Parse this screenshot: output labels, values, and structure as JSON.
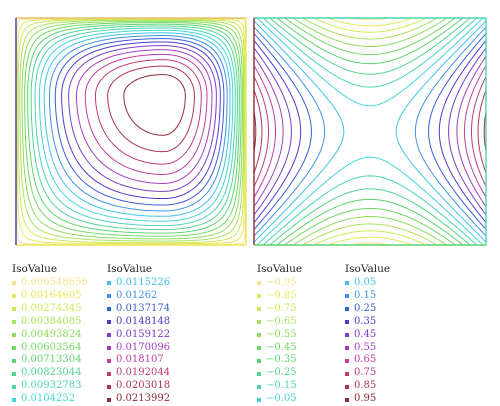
{
  "legends": [
    {
      "title": "IsoValue",
      "entries": [
        {
          "label": "0.000548656",
          "color": "#f2e48b"
        },
        {
          "label": "0.00164605",
          "color": "#e8e65a"
        },
        {
          "label": "0.00274345",
          "color": "#ccea56"
        },
        {
          "label": "0.00384085",
          "color": "#a8e25c"
        },
        {
          "label": "0.00493824",
          "color": "#8cdc5c"
        },
        {
          "label": "0.00603564",
          "color": "#6fd963"
        },
        {
          "label": "0.00713304",
          "color": "#5cd470"
        },
        {
          "label": "0.00823044",
          "color": "#52d48f"
        },
        {
          "label": "0.00932783",
          "color": "#4bd4b4"
        },
        {
          "label": "0.0104252",
          "color": "#44d6d6"
        }
      ]
    },
    {
      "title": "IsoValue",
      "entries": [
        {
          "label": "0.0115226",
          "color": "#3ec4e8"
        },
        {
          "label": "0.01262",
          "color": "#3e92e8"
        },
        {
          "label": "0.0137174",
          "color": "#3a5cd8"
        },
        {
          "label": "0.0148148",
          "color": "#4b3cd0"
        },
        {
          "label": "0.0159122",
          "color": "#7a3ccc"
        },
        {
          "label": "0.0170096",
          "color": "#a63cc2"
        },
        {
          "label": "0.018107",
          "color": "#c23ca2"
        },
        {
          "label": "0.0192044",
          "color": "#c23a78"
        },
        {
          "label": "0.0203018",
          "color": "#b03452"
        },
        {
          "label": "0.0213992",
          "color": "#8a2a36"
        }
      ]
    },
    {
      "title": "IsoValue",
      "entries": [
        {
          "label": "−0.95",
          "color": "#f2e48b"
        },
        {
          "label": "−0.85",
          "color": "#e8e65a"
        },
        {
          "label": "−0.75",
          "color": "#ccea56"
        },
        {
          "label": "−0.65",
          "color": "#a8e25c"
        },
        {
          "label": "−0.55",
          "color": "#8cdc5c"
        },
        {
          "label": "−0.45",
          "color": "#6fd963"
        },
        {
          "label": "−0.35",
          "color": "#5cd470"
        },
        {
          "label": "−0.25",
          "color": "#52d48f"
        },
        {
          "label": "−0.15",
          "color": "#4bd4b4"
        },
        {
          "label": "−0.05",
          "color": "#44d6d6"
        }
      ]
    },
    {
      "title": "IsoValue",
      "entries": [
        {
          "label": "0.05",
          "color": "#3ec4e8"
        },
        {
          "label": "0.15",
          "color": "#3e92e8"
        },
        {
          "label": "0.25",
          "color": "#3a5cd8"
        },
        {
          "label": "0.35",
          "color": "#4b3cd0"
        },
        {
          "label": "0.45",
          "color": "#7a3ccc"
        },
        {
          "label": "0.55",
          "color": "#a63cc2"
        },
        {
          "label": "0.65",
          "color": "#c23ca2"
        },
        {
          "label": "0.75",
          "color": "#c23a78"
        },
        {
          "label": "0.85",
          "color": "#b03452"
        },
        {
          "label": "0.95",
          "color": "#8a2a36"
        }
      ]
    }
  ]
}
